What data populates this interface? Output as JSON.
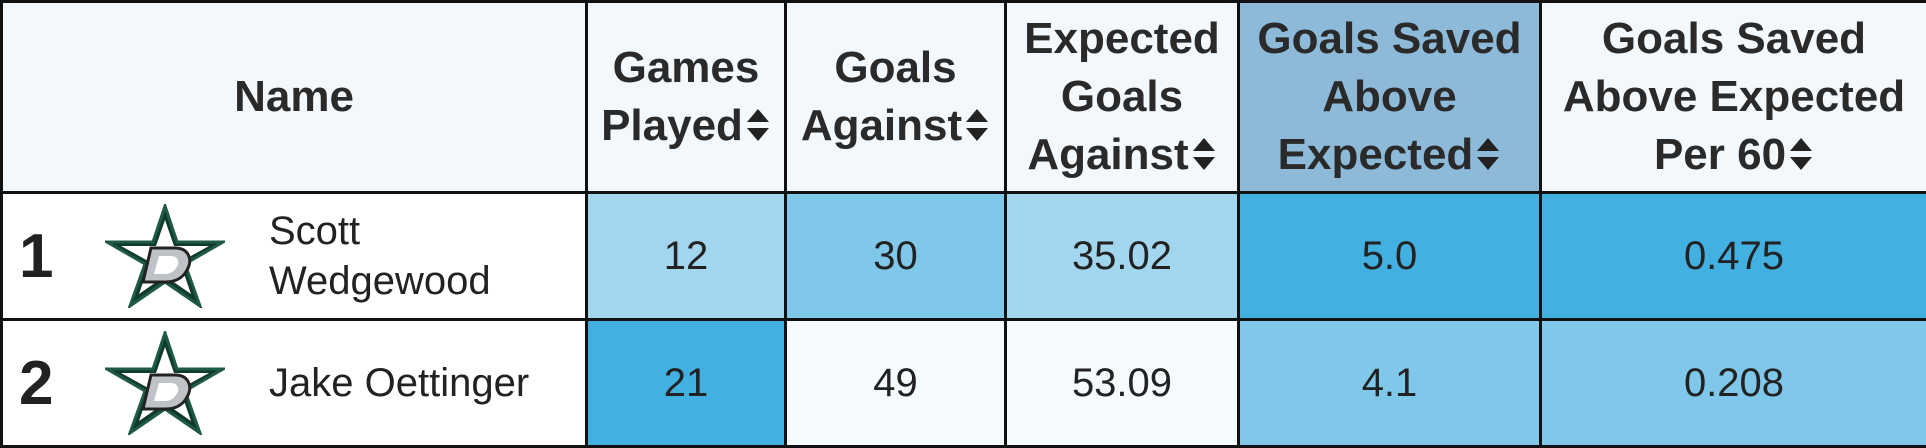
{
  "headers": {
    "name": "Name",
    "games_played": [
      "Games",
      "Played"
    ],
    "goals_against": [
      "Goals",
      "Against"
    ],
    "xga": [
      "Expected",
      "Goals",
      "Against"
    ],
    "gsax": [
      "Goals Saved",
      "Above",
      "Expected"
    ],
    "gsax60": [
      "Goals Saved",
      "Above Expected",
      "Per 60"
    ]
  },
  "rows": [
    {
      "rank": "1",
      "name": [
        "Scott",
        "Wedgewood"
      ],
      "logo": "dallas-stars-logo",
      "games_played": "12",
      "goals_against": "30",
      "xga": "35.02",
      "gsax": "5.0",
      "gsax60": "0.475",
      "colors": {
        "games_played": "#a2d6ef",
        "goals_against": "#7fc8ea",
        "xga": "#a2d6ef",
        "gsax": "#42b0e0",
        "gsax60": "#42b0e0"
      }
    },
    {
      "rank": "2",
      "name": [
        "Jake Oettinger"
      ],
      "logo": "dallas-stars-logo",
      "games_played": "21",
      "goals_against": "49",
      "xga": "53.09",
      "gsax": "4.1",
      "gsax60": "0.208",
      "colors": {
        "games_played": "#42b0e0",
        "goals_against": "#f5fafd",
        "xga": "#f5fafd",
        "gsax": "#7fc8ea",
        "gsax60": "#7fc8ea"
      }
    }
  ],
  "sorted_column_color": "#8dbad9",
  "header_bg": "#f3f8fc"
}
